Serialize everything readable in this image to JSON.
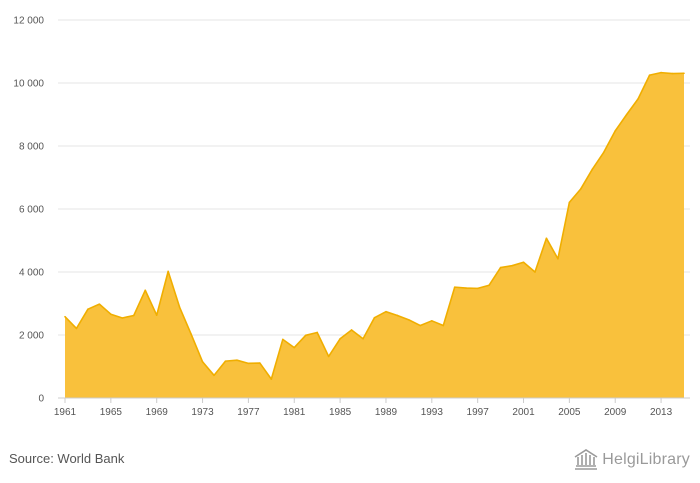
{
  "footer": {
    "source": "Source: World Bank",
    "brand": "HelgiLibrary"
  },
  "colors": {
    "area_fill": "#f9c13c",
    "area_line": "#f0ae00",
    "gridline": "#e6e6e6",
    "axis": "#cccccc",
    "brand_gray": "#9a9a9a"
  },
  "chart_data": {
    "type": "area",
    "title": "",
    "xlabel": "",
    "ylabel": "",
    "ylim": [
      0,
      12000
    ],
    "yticks": [
      0,
      2000,
      4000,
      6000,
      8000,
      10000,
      12000
    ],
    "ytick_labels": [
      "0",
      "2 000",
      "4 000",
      "6 000",
      "8 000",
      "10 000",
      "12 000"
    ],
    "xticks": [
      1961,
      1965,
      1969,
      1973,
      1977,
      1981,
      1985,
      1989,
      1993,
      1997,
      2001,
      2005,
      2009,
      2013
    ],
    "xtick_labels": [
      "1961",
      "1965",
      "1969",
      "1973",
      "1977",
      "1981",
      "1985",
      "1989",
      "1993",
      "1997",
      "2001",
      "2005",
      "2009",
      "2013"
    ],
    "grid": true,
    "legend": "none",
    "x": [
      1961,
      1962,
      1963,
      1964,
      1965,
      1966,
      1967,
      1968,
      1969,
      1970,
      1971,
      1972,
      1973,
      1974,
      1975,
      1976,
      1977,
      1978,
      1979,
      1980,
      1981,
      1982,
      1983,
      1984,
      1985,
      1986,
      1987,
      1988,
      1989,
      1990,
      1991,
      1992,
      1993,
      1994,
      1995,
      1996,
      1997,
      1998,
      1999,
      2000,
      2001,
      2002,
      2003,
      2004,
      2005,
      2006,
      2007,
      2008,
      2009,
      2010,
      2011,
      2012,
      2013,
      2014,
      2015
    ],
    "values": [
      2580,
      2210,
      2820,
      2980,
      2660,
      2540,
      2620,
      3420,
      2630,
      4020,
      2880,
      2030,
      1150,
      720,
      1170,
      1200,
      1100,
      1110,
      600,
      1860,
      1600,
      1990,
      2080,
      1320,
      1880,
      2160,
      1880,
      2550,
      2740,
      2620,
      2480,
      2300,
      2450,
      2300,
      3520,
      3490,
      3480,
      3580,
      4140,
      4200,
      4310,
      4000,
      5070,
      4420,
      6210,
      6640,
      7260,
      7800,
      8480,
      9000,
      9500,
      10250,
      10330,
      10300,
      10310
    ]
  }
}
